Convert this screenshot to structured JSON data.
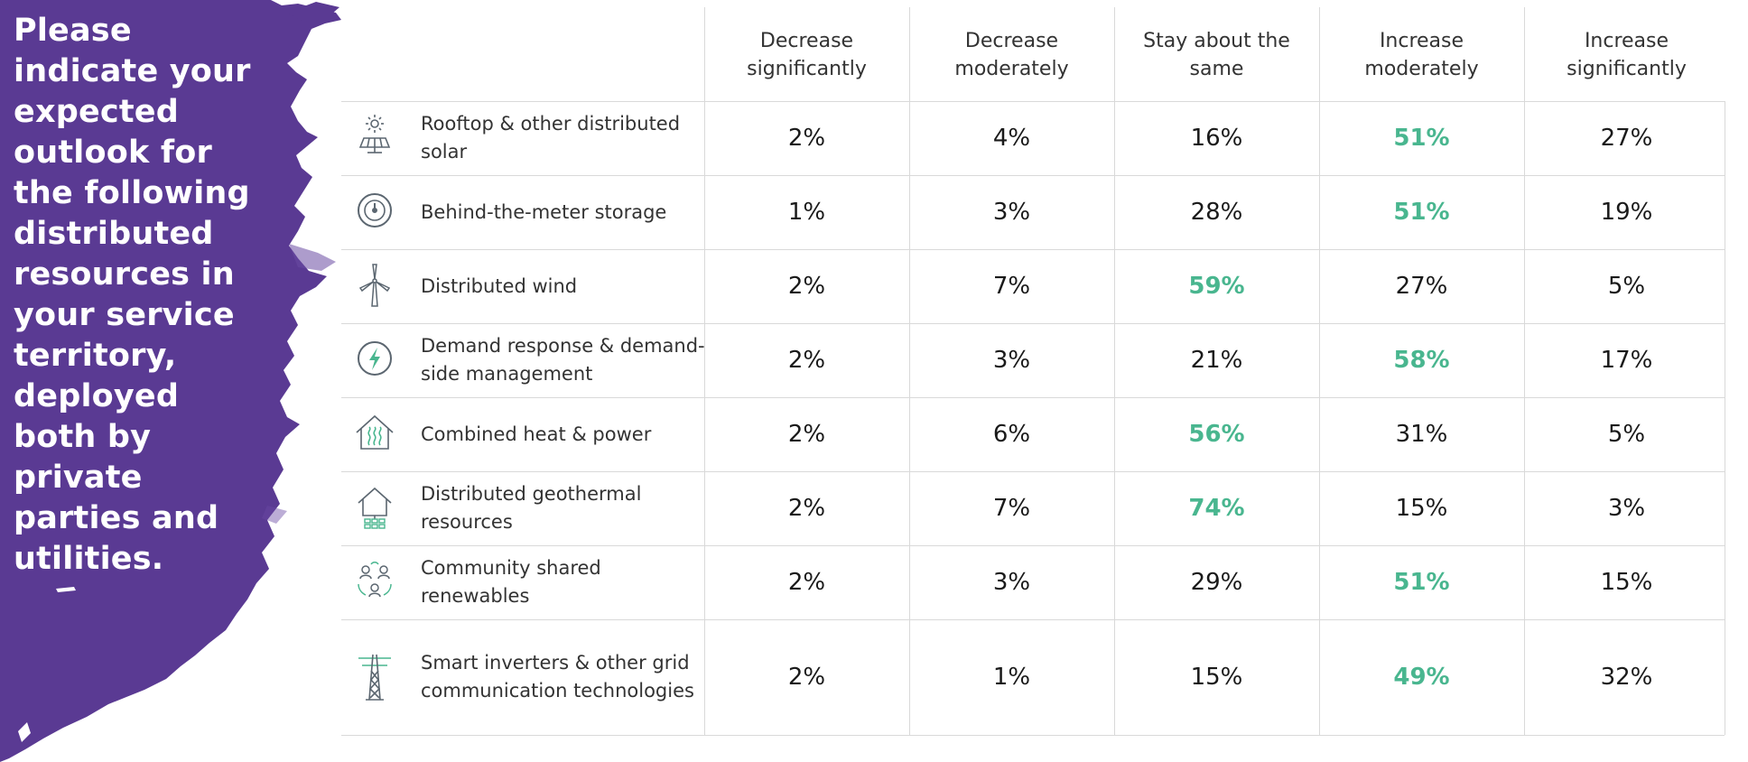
{
  "question": "Please indicate your expected outlook for the following distributed resources in your service territory, deployed both by private parties and utilities.",
  "colors": {
    "purple": "#5a3a93",
    "highlight": "#49b68f",
    "icon": "#5b6670"
  },
  "chart_data": {
    "type": "table",
    "columns": [
      "Decrease significantly",
      "Decrease moderately",
      "Stay about the same",
      "Increase moderately",
      "Increase significantly"
    ],
    "rows": [
      {
        "label": "Rooftop & other distributed solar",
        "icon": "solar-panel-icon",
        "values": [
          "2%",
          "4%",
          "16%",
          "51%",
          "27%"
        ],
        "highlight": 3
      },
      {
        "label": "Behind-the-meter storage",
        "icon": "meter-gauge-icon",
        "values": [
          "1%",
          "3%",
          "28%",
          "51%",
          "19%"
        ],
        "highlight": 3
      },
      {
        "label": "Distributed wind",
        "icon": "wind-turbine-icon",
        "values": [
          "2%",
          "7%",
          "59%",
          "27%",
          "5%"
        ],
        "highlight": 2
      },
      {
        "label": "Demand response & demand-side management",
        "icon": "lightning-bolt-icon",
        "values": [
          "2%",
          "3%",
          "21%",
          "58%",
          "17%"
        ],
        "highlight": 3
      },
      {
        "label": "Combined heat & power",
        "icon": "house-heat-icon",
        "values": [
          "2%",
          "6%",
          "56%",
          "31%",
          "5%"
        ],
        "highlight": 2
      },
      {
        "label": "Distributed geothermal resources",
        "icon": "geothermal-house-icon",
        "values": [
          "2%",
          "7%",
          "74%",
          "15%",
          "3%"
        ],
        "highlight": 2
      },
      {
        "label": "Community shared renewables",
        "icon": "community-people-icon",
        "values": [
          "2%",
          "3%",
          "29%",
          "51%",
          "15%"
        ],
        "highlight": 3
      },
      {
        "label": "Smart inverters & other grid communication technologies",
        "icon": "transmission-tower-icon",
        "values": [
          "2%",
          "1%",
          "15%",
          "49%",
          "32%"
        ],
        "highlight": 3
      }
    ]
  }
}
